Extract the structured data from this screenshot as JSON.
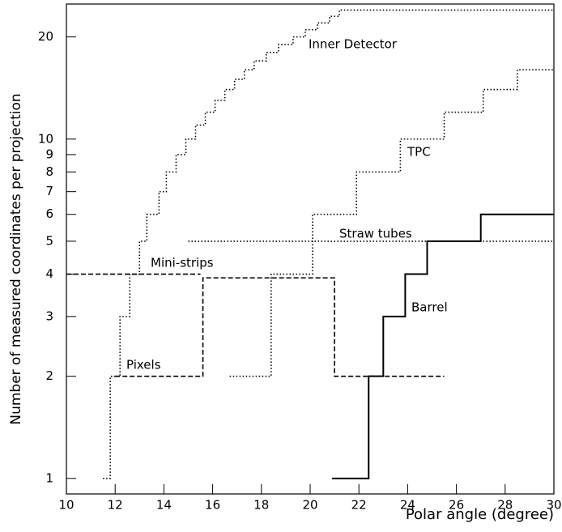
{
  "chart_data": {
    "type": "step",
    "xlabel": "Polar angle (degree)",
    "ylabel": "Number of measured coordinates per projection",
    "xlim": [
      10,
      30
    ],
    "xticks": [
      10,
      12,
      14,
      16,
      18,
      20,
      22,
      24,
      26,
      28,
      30
    ],
    "ylim": [
      0.9,
      25
    ],
    "yticks": [
      1,
      2,
      3,
      4,
      5,
      6,
      7,
      8,
      9,
      10,
      20
    ],
    "ylog": true,
    "grid": false,
    "series": [
      {
        "name": "Inner Detector",
        "color": "#000000",
        "style": "dotted",
        "x": [
          11.5,
          11.8,
          12.2,
          12.6,
          13.0,
          13.3,
          13.8,
          14.1,
          14.5,
          14.9,
          15.3,
          15.7,
          16.1,
          16.5,
          16.9,
          17.3,
          17.7,
          18.2,
          18.7,
          19.3,
          19.8,
          20.3,
          20.8,
          21.2,
          30
        ],
        "values": [
          1,
          2,
          3,
          4,
          5,
          6,
          7,
          8,
          9,
          10,
          11,
          12,
          13,
          14,
          15,
          16,
          17,
          18,
          19,
          20,
          21,
          22,
          23,
          24,
          24
        ]
      },
      {
        "name": "TPC",
        "color": "#000000",
        "style": "dotted",
        "x": [
          16.7,
          18.4,
          20.1,
          21.9,
          23.7,
          25.5,
          27.1,
          28.5,
          30
        ],
        "values": [
          2,
          4,
          6,
          8,
          10,
          12,
          14,
          16,
          16
        ]
      },
      {
        "name": "Straw tubes",
        "color": "#000000",
        "style": "dotted",
        "x": [
          15,
          30
        ],
        "values": [
          5,
          5
        ]
      },
      {
        "name": "Mini-strips",
        "color": "#000000",
        "style": "dashed",
        "x": [
          10,
          15.5
        ],
        "values": [
          4,
          4
        ]
      },
      {
        "name": "Pixels",
        "color": "#000000",
        "style": "dashed",
        "x": [
          12.0,
          15.6,
          21.0,
          25.5
        ],
        "values": [
          2,
          3.9,
          2,
          2
        ]
      },
      {
        "name": "Barrel",
        "color": "#000000",
        "style": "solid",
        "x": [
          20.9,
          22.4,
          23.0,
          23.9,
          24.8,
          27.0,
          30
        ],
        "values": [
          1,
          2,
          3,
          4,
          5,
          6,
          6
        ]
      }
    ]
  }
}
